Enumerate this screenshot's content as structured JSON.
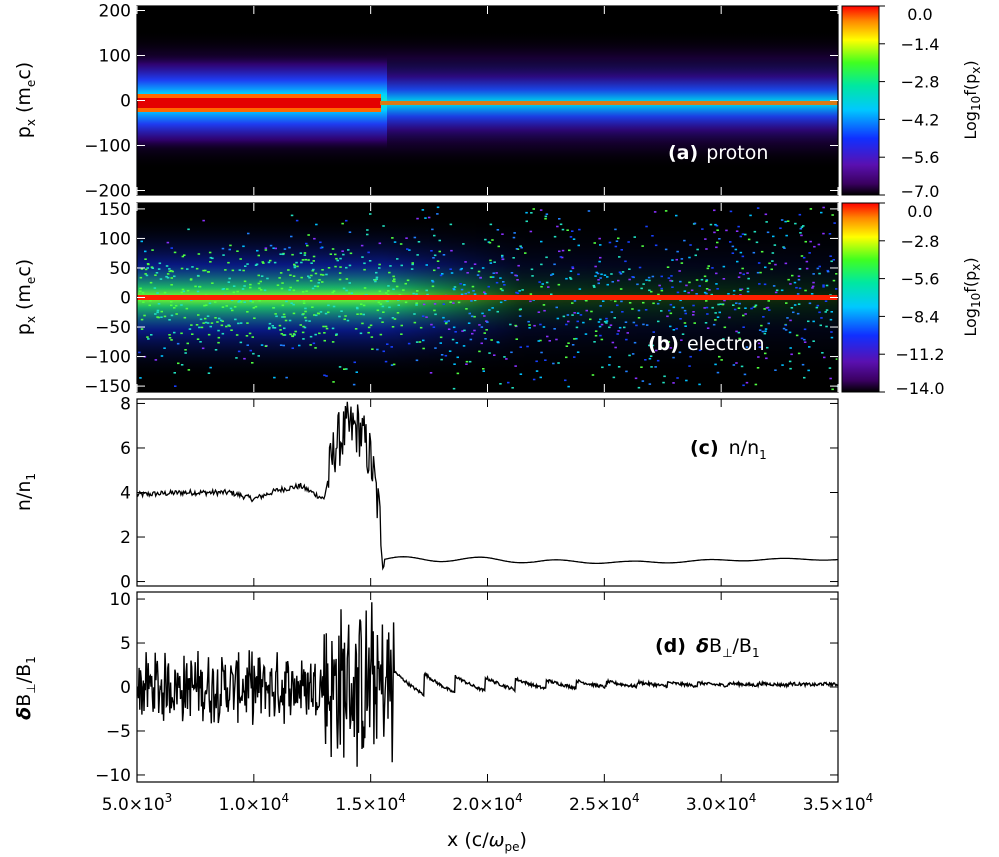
{
  "chart_data": [
    {
      "type": "heatmap",
      "panel": "(a)",
      "species": "proton",
      "ylabel": "p_x (m_e c)",
      "ylim": [
        -210,
        210
      ],
      "yticks": [
        "200",
        "100",
        "0",
        "−100",
        "−200"
      ],
      "xlim": [
        5000,
        35000
      ],
      "colorbar": {
        "label": "Log10f(px)",
        "range": [
          -7.0,
          0.0
        ],
        "ticks": [
          "0.0",
          "−1.4",
          "−2.8",
          "−4.2",
          "−5.6",
          "−7.0"
        ]
      },
      "features": {
        "cold_beam_px": 0,
        "cold_beam_until_x": 15500,
        "downstream_thermal_spread_px": 60,
        "background_spread_px": 200
      }
    },
    {
      "type": "heatmap",
      "panel": "(b)",
      "species": "electron",
      "ylabel": "p_x (m_e c)",
      "ylim": [
        -160,
        160
      ],
      "yticks": [
        "150",
        "100",
        "50",
        "0",
        "−50",
        "−100",
        "−150"
      ],
      "xlim": [
        5000,
        35000
      ],
      "colorbar": {
        "label": "Log10f(px)",
        "range": [
          -14.0,
          0.0
        ],
        "ticks": [
          "0.0",
          "−2.8",
          "−5.6",
          "−8.4",
          "−11.2",
          "−14.0"
        ]
      },
      "features": {
        "core_px": 0,
        "heated_region_x": [
          5000,
          16000
        ]
      }
    },
    {
      "type": "line",
      "panel": "(c)",
      "series": [
        {
          "name": "n/n1",
          "x": [
            5000,
            7000,
            9000,
            10000,
            11000,
            12000,
            13000,
            13500,
            14000,
            14500,
            15000,
            15300,
            15600,
            16000,
            18000,
            20000,
            22000,
            24000,
            26000,
            28000,
            30000,
            32000,
            35000
          ],
          "values": [
            3.9,
            4.0,
            4.0,
            3.7,
            4.1,
            4.3,
            3.7,
            6.2,
            6.8,
            6.9,
            5.5,
            3.5,
            1.0,
            1.0,
            1.0,
            1.0,
            0.9,
            0.9,
            0.85,
            0.9,
            0.95,
            1.0,
            1.0
          ]
        }
      ],
      "ylabel": "n/n1",
      "ylim": [
        -0.2,
        8.2
      ],
      "yticks": [
        "8",
        "6",
        "4",
        "2",
        "0"
      ],
      "xlim": [
        5000,
        35000
      ]
    },
    {
      "type": "line",
      "panel": "(d)",
      "series": [
        {
          "name": "δB⊥/B1",
          "x": [
            5000,
            7000,
            9000,
            10000,
            11000,
            12000,
            13000,
            13500,
            14000,
            14500,
            15000,
            15300,
            15600,
            16000,
            17000,
            18000,
            20000,
            22000,
            24000,
            26000,
            28000,
            30000,
            32000,
            35000
          ],
          "values": [
            0.0,
            1.5,
            -2.5,
            4.0,
            -3.0,
            3.5,
            -5.0,
            8.5,
            -10.0,
            10.5,
            -10.5,
            5.0,
            1.5,
            -1.0,
            -2.0,
            1.0,
            -1.5,
            0.8,
            -0.7,
            0.5,
            0.3,
            0.3,
            0.3,
            0.3
          ]
        }
      ],
      "ylabel": "δB⊥/B1",
      "ylim": [
        -10.8,
        10.8
      ],
      "yticks": [
        "10",
        "5",
        "0",
        "−5",
        "−10"
      ],
      "xlim": [
        5000,
        35000
      ],
      "xticks": [
        {
          "value": 5000,
          "mant": "5.0×10",
          "exp": "3"
        },
        {
          "value": 10000,
          "mant": "1.0×10",
          "exp": "4"
        },
        {
          "value": 15000,
          "mant": "1.5×10",
          "exp": "4"
        },
        {
          "value": 20000,
          "mant": "2.0×10",
          "exp": "4"
        },
        {
          "value": 25000,
          "mant": "2.5×10",
          "exp": "4"
        },
        {
          "value": 30000,
          "mant": "3.0×10",
          "exp": "4"
        },
        {
          "value": 35000,
          "mant": "3.5×10",
          "exp": "4"
        }
      ],
      "xlabel": "x (c/ωpe)"
    }
  ],
  "labels": {
    "a_tag": "(a)",
    "a_name": "proton",
    "b_tag": "(b)",
    "b_name": "electron",
    "c_tag": "(c)",
    "d_tag": "(d)"
  }
}
